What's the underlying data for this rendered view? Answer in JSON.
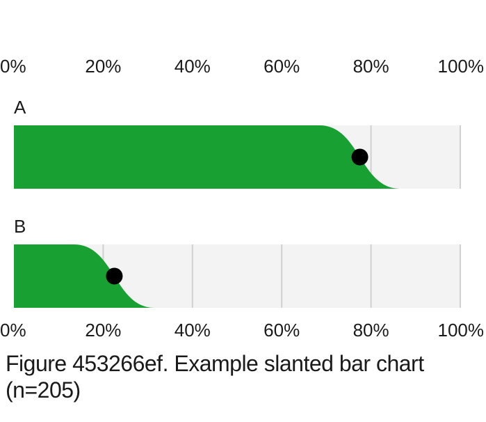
{
  "chart_data": {
    "type": "bar",
    "subtype": "slanted-bar",
    "categories": [
      "A",
      "B"
    ],
    "values": [
      0.775,
      0.225
    ],
    "x_axis": {
      "range": [
        0,
        1
      ],
      "ticks": [
        0,
        0.2,
        0.4,
        0.6,
        0.8,
        1.0
      ],
      "tick_labels": [
        "0%",
        "20%",
        "40%",
        "60%",
        "80%",
        "100%"
      ],
      "positions": [
        "top",
        "bottom"
      ]
    },
    "title": "",
    "xlabel": "",
    "ylabel": "",
    "grid": true,
    "legend": "none",
    "colors": {
      "fill": "#19a032",
      "track": "#f3f3f3",
      "grid": "#d0d0d0",
      "marker": "#000000"
    }
  },
  "caption": {
    "text": "Figure 453266ef. Example slanted bar chart (n=205)"
  }
}
